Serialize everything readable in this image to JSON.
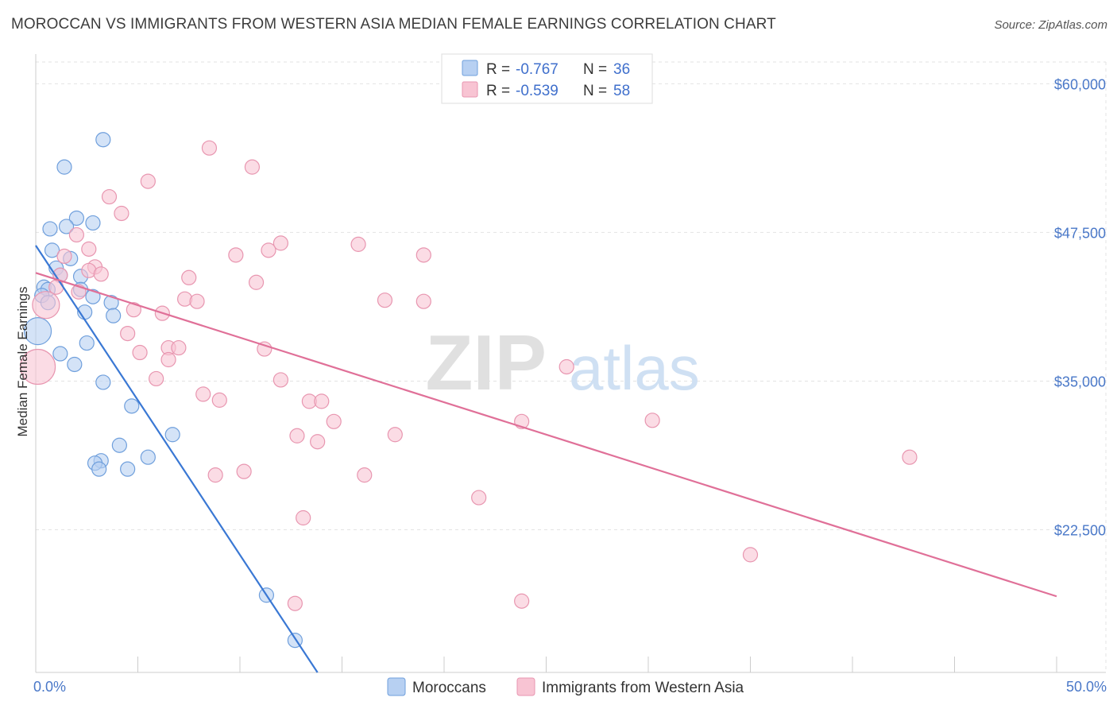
{
  "title": "MOROCCAN VS IMMIGRANTS FROM WESTERN ASIA MEDIAN FEMALE EARNINGS CORRELATION CHART",
  "source": "Source: ZipAtlas.com",
  "watermark": {
    "zip": "ZIP",
    "atlas": "atlas"
  },
  "colors": {
    "moroccan_fill": "#b7d0f2",
    "moroccan_stroke": "#6f9fdc",
    "moroccan_line": "#3a78d4",
    "western_asia_fill": "#f8c4d3",
    "western_asia_stroke": "#e896b0",
    "western_asia_line": "#e07098",
    "value_text": "#3f6fcc",
    "grid": "#e3e3e3",
    "axis": "#cccccc"
  },
  "legend": {
    "r_label": "R =",
    "n_label": "N =",
    "rows": [
      {
        "series": "Moroccans",
        "r": "-0.767",
        "n": "36"
      },
      {
        "series": "Immigrants from Western Asia",
        "r": "-0.539",
        "n": "58"
      }
    ]
  },
  "chart_data": {
    "type": "scatter",
    "title": "MOROCCAN VS IMMIGRANTS FROM WESTERN ASIA MEDIAN FEMALE EARNINGS CORRELATION CHART",
    "xlabel": "",
    "ylabel": "Median Female Earnings",
    "xlim": [
      0,
      50
    ],
    "ylim": [
      10500,
      62500
    ],
    "x_tick_labels": [
      {
        "value": 0,
        "label": "0.0%"
      },
      {
        "value": 50,
        "label": "50.0%"
      }
    ],
    "x_minor_ticks": [
      5,
      10,
      15,
      20,
      25,
      30,
      35,
      40,
      45,
      50
    ],
    "y_ticks": [
      {
        "value": 60000,
        "label": "$60,000"
      },
      {
        "value": 47500,
        "label": "$47,500"
      },
      {
        "value": 35000,
        "label": "$35,000"
      },
      {
        "value": 22500,
        "label": "$22,500"
      }
    ],
    "grid": true,
    "legend_position": "bottom",
    "series": [
      {
        "name": "Moroccans",
        "color": "#6f9fdc",
        "r": -0.767,
        "n": 36,
        "trend": {
          "x": [
            0.0,
            13.8
          ],
          "y": [
            46400,
            10500
          ]
        },
        "points": [
          {
            "x": 3.3,
            "y": 55300,
            "s": 1
          },
          {
            "x": 1.4,
            "y": 53000,
            "s": 1
          },
          {
            "x": 2.0,
            "y": 48700,
            "s": 1
          },
          {
            "x": 2.8,
            "y": 48300,
            "s": 1
          },
          {
            "x": 0.7,
            "y": 47800,
            "s": 1
          },
          {
            "x": 1.5,
            "y": 48000,
            "s": 1
          },
          {
            "x": 0.8,
            "y": 46000,
            "s": 1
          },
          {
            "x": 1.7,
            "y": 45300,
            "s": 1
          },
          {
            "x": 1.0,
            "y": 44500,
            "s": 1
          },
          {
            "x": 1.2,
            "y": 43900,
            "s": 1
          },
          {
            "x": 2.2,
            "y": 43800,
            "s": 1
          },
          {
            "x": 0.4,
            "y": 42900,
            "s": 1
          },
          {
            "x": 0.6,
            "y": 42700,
            "s": 1
          },
          {
            "x": 2.2,
            "y": 42700,
            "s": 1
          },
          {
            "x": 0.3,
            "y": 42200,
            "s": 1
          },
          {
            "x": 2.8,
            "y": 42100,
            "s": 1
          },
          {
            "x": 0.6,
            "y": 41600,
            "s": 1
          },
          {
            "x": 3.7,
            "y": 41600,
            "s": 1
          },
          {
            "x": 2.4,
            "y": 40800,
            "s": 1
          },
          {
            "x": 3.8,
            "y": 40500,
            "s": 1
          },
          {
            "x": 0.1,
            "y": 39200,
            "s": 2
          },
          {
            "x": 2.5,
            "y": 38200,
            "s": 1
          },
          {
            "x": 1.2,
            "y": 37300,
            "s": 1
          },
          {
            "x": 1.9,
            "y": 36400,
            "s": 1
          },
          {
            "x": 3.3,
            "y": 34900,
            "s": 1
          },
          {
            "x": 4.7,
            "y": 32900,
            "s": 1
          },
          {
            "x": 6.7,
            "y": 30500,
            "s": 1
          },
          {
            "x": 4.1,
            "y": 29600,
            "s": 1
          },
          {
            "x": 5.5,
            "y": 28600,
            "s": 1
          },
          {
            "x": 3.2,
            "y": 28300,
            "s": 1
          },
          {
            "x": 2.9,
            "y": 28100,
            "s": 1
          },
          {
            "x": 3.1,
            "y": 27600,
            "s": 1
          },
          {
            "x": 4.5,
            "y": 27600,
            "s": 1
          },
          {
            "x": 11.3,
            "y": 17000,
            "s": 1
          },
          {
            "x": 12.7,
            "y": 13200,
            "s": 1
          }
        ]
      },
      {
        "name": "Immigrants from Western Asia",
        "color": "#e896b0",
        "r": -0.539,
        "n": 58,
        "trend": {
          "x": [
            0.0,
            50.0
          ],
          "y": [
            44100,
            16900
          ]
        },
        "points": [
          {
            "x": 8.5,
            "y": 54600,
            "s": 1
          },
          {
            "x": 10.6,
            "y": 53000,
            "s": 1
          },
          {
            "x": 5.5,
            "y": 51800,
            "s": 1
          },
          {
            "x": 3.6,
            "y": 50500,
            "s": 1
          },
          {
            "x": 4.2,
            "y": 49100,
            "s": 1
          },
          {
            "x": 2.0,
            "y": 47300,
            "s": 1
          },
          {
            "x": 12.0,
            "y": 46600,
            "s": 1
          },
          {
            "x": 15.8,
            "y": 46500,
            "s": 1
          },
          {
            "x": 2.6,
            "y": 46100,
            "s": 1
          },
          {
            "x": 11.4,
            "y": 46000,
            "s": 1
          },
          {
            "x": 9.8,
            "y": 45600,
            "s": 1
          },
          {
            "x": 19.0,
            "y": 45600,
            "s": 1
          },
          {
            "x": 1.4,
            "y": 45500,
            "s": 1
          },
          {
            "x": 2.9,
            "y": 44600,
            "s": 1
          },
          {
            "x": 2.6,
            "y": 44300,
            "s": 1
          },
          {
            "x": 3.2,
            "y": 44000,
            "s": 1
          },
          {
            "x": 1.2,
            "y": 43900,
            "s": 1
          },
          {
            "x": 7.5,
            "y": 43700,
            "s": 1
          },
          {
            "x": 10.8,
            "y": 43300,
            "s": 1
          },
          {
            "x": 1.0,
            "y": 42900,
            "s": 1
          },
          {
            "x": 2.1,
            "y": 42500,
            "s": 1
          },
          {
            "x": 7.3,
            "y": 41900,
            "s": 1
          },
          {
            "x": 7.9,
            "y": 41700,
            "s": 1
          },
          {
            "x": 17.1,
            "y": 41800,
            "s": 1
          },
          {
            "x": 19.0,
            "y": 41700,
            "s": 1
          },
          {
            "x": 0.5,
            "y": 41400,
            "s": 2
          },
          {
            "x": 4.8,
            "y": 41000,
            "s": 1
          },
          {
            "x": 6.2,
            "y": 40700,
            "s": 1
          },
          {
            "x": 4.5,
            "y": 39000,
            "s": 1
          },
          {
            "x": 6.5,
            "y": 37800,
            "s": 1
          },
          {
            "x": 7.0,
            "y": 37800,
            "s": 1
          },
          {
            "x": 11.2,
            "y": 37700,
            "s": 1
          },
          {
            "x": 5.1,
            "y": 37400,
            "s": 1
          },
          {
            "x": 6.5,
            "y": 36800,
            "s": 1
          },
          {
            "x": 0.1,
            "y": 36200,
            "s": 3
          },
          {
            "x": 26.0,
            "y": 36200,
            "s": 1
          },
          {
            "x": 5.9,
            "y": 35200,
            "s": 1
          },
          {
            "x": 12.0,
            "y": 35100,
            "s": 1
          },
          {
            "x": 8.2,
            "y": 33900,
            "s": 1
          },
          {
            "x": 9.0,
            "y": 33400,
            "s": 1
          },
          {
            "x": 13.4,
            "y": 33300,
            "s": 1
          },
          {
            "x": 14.0,
            "y": 33300,
            "s": 1
          },
          {
            "x": 14.6,
            "y": 31600,
            "s": 1
          },
          {
            "x": 23.8,
            "y": 31600,
            "s": 1
          },
          {
            "x": 30.2,
            "y": 31700,
            "s": 1
          },
          {
            "x": 12.8,
            "y": 30400,
            "s": 1
          },
          {
            "x": 17.6,
            "y": 30500,
            "s": 1
          },
          {
            "x": 13.8,
            "y": 29900,
            "s": 1
          },
          {
            "x": 42.8,
            "y": 28600,
            "s": 1
          },
          {
            "x": 10.2,
            "y": 27400,
            "s": 1
          },
          {
            "x": 8.8,
            "y": 27100,
            "s": 1
          },
          {
            "x": 16.1,
            "y": 27100,
            "s": 1
          },
          {
            "x": 21.7,
            "y": 25200,
            "s": 1
          },
          {
            "x": 13.1,
            "y": 23500,
            "s": 1
          },
          {
            "x": 35.0,
            "y": 20400,
            "s": 1
          },
          {
            "x": 12.7,
            "y": 16300,
            "s": 1
          },
          {
            "x": 23.8,
            "y": 16500,
            "s": 1
          }
        ]
      }
    ]
  }
}
